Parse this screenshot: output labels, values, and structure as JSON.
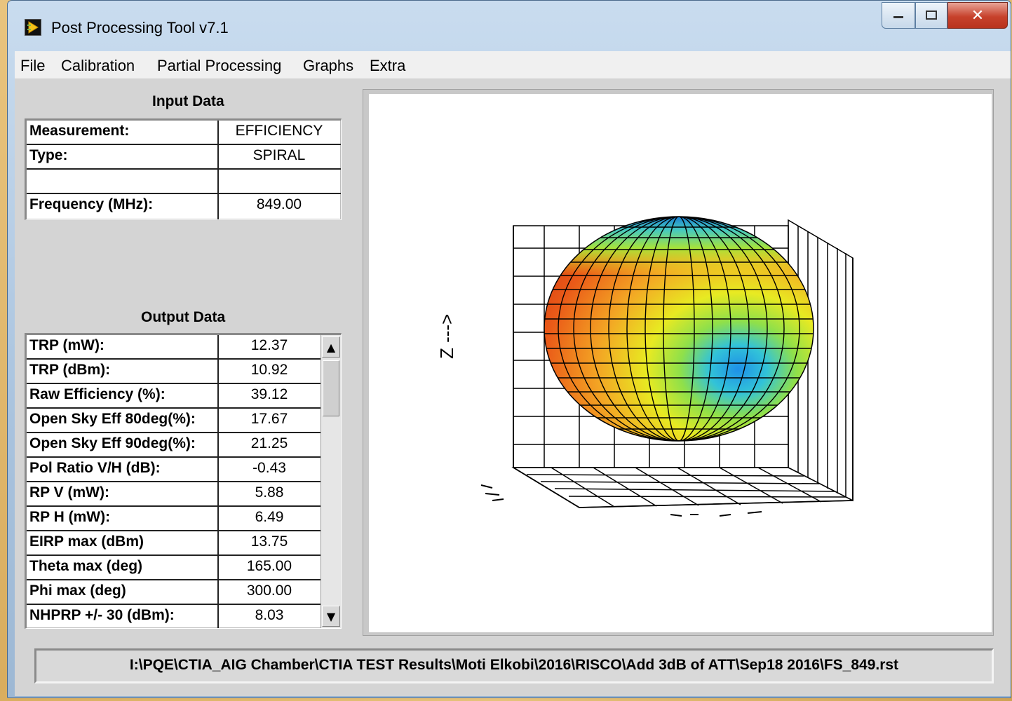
{
  "window": {
    "title": "Post Processing Tool v7.1"
  },
  "menu": [
    "File",
    "Calibration",
    "Partial Processing",
    "Graphs",
    "Extra"
  ],
  "input_data": {
    "heading": "Input Data",
    "rows": [
      {
        "label": "Measurement:",
        "value": "EFFICIENCY"
      },
      {
        "label": "Type:",
        "value": "SPIRAL"
      },
      {
        "label": "",
        "value": ""
      },
      {
        "label": "Frequency (MHz):",
        "value": "849.00"
      }
    ]
  },
  "output_data": {
    "heading": "Output Data",
    "rows": [
      {
        "label": "TRP (mW):",
        "value": "12.37"
      },
      {
        "label": "TRP (dBm):",
        "value": "10.92"
      },
      {
        "label": "Raw Efficiency (%):",
        "value": "39.12"
      },
      {
        "label": "Open Sky Eff 80deg(%):",
        "value": "17.67"
      },
      {
        "label": "Open Sky Eff 90deg(%):",
        "value": "21.25"
      },
      {
        "label": "Pol Ratio V/H (dB):",
        "value": "-0.43"
      },
      {
        "label": "RP V (mW):",
        "value": "5.88"
      },
      {
        "label": "RP H (mW):",
        "value": "6.49"
      },
      {
        "label": "EIRP max (dBm)",
        "value": "13.75"
      },
      {
        "label": "Theta max (deg)",
        "value": "165.00"
      },
      {
        "label": "Phi max (deg)",
        "value": "300.00"
      },
      {
        "label": "NHPRP +/- 30 (dBm):",
        "value": "8.03"
      }
    ]
  },
  "graph": {
    "axis_label": "Z --->"
  },
  "file_path": "I:\\PQE\\CTIA_AIG Chamber\\CTIA TEST Results\\Moti Elkobi\\2016\\RISCO\\Add 3dB of ATT\\Sep18 2016\\FS_849.rst",
  "colors": {
    "close_button": "#c7422c",
    "titlebar": "#b9cfe6",
    "panel": "#d4d4d4"
  }
}
